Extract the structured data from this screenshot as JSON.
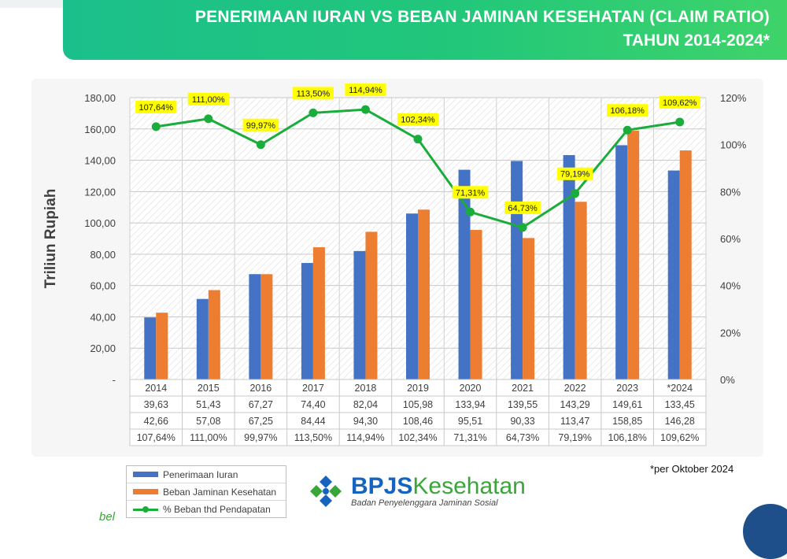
{
  "header": {
    "title_line1": "PENERIMAAN IURAN VS BEBAN JAMINAN KESEHATAN (CLAIM RATIO)",
    "title_line2": "TAHUN 2014-2024*"
  },
  "colors": {
    "bar_iuran": "#4472c4",
    "bar_beban": "#ed7d31",
    "line": "#1aad3b",
    "label_bg": "#ffff00",
    "banner": "#22c77a"
  },
  "chart_data": {
    "type": "bar",
    "categories": [
      "2014",
      "2015",
      "2016",
      "2017",
      "2018",
      "2019",
      "2020",
      "2021",
      "2022",
      "2023",
      "*2024"
    ],
    "series": [
      {
        "name": "Penerimaan Iuran",
        "type": "bar",
        "axis": "left",
        "values": [
          39.63,
          51.43,
          67.27,
          74.4,
          82.04,
          105.98,
          133.94,
          139.55,
          143.29,
          149.61,
          133.45
        ],
        "labels": [
          "39,63",
          "51,43",
          "67,27",
          "74,40",
          "82,04",
          "105,98",
          "133,94",
          "139,55",
          "143,29",
          "149,61",
          "133,45"
        ]
      },
      {
        "name": "Beban Jaminan Kesehatan",
        "type": "bar",
        "axis": "left",
        "values": [
          42.66,
          57.08,
          67.25,
          84.44,
          94.3,
          108.46,
          95.51,
          90.33,
          113.47,
          158.85,
          146.28
        ],
        "labels": [
          "42,66",
          "57,08",
          "67,25",
          "84,44",
          "94,30",
          "108,46",
          "95,51",
          "90,33",
          "113,47",
          "158,85",
          "146,28"
        ]
      },
      {
        "name": "% Beban thd Pendapatan",
        "type": "line",
        "axis": "right",
        "values": [
          107.64,
          111.0,
          99.97,
          113.5,
          114.94,
          102.34,
          71.31,
          64.73,
          79.19,
          106.18,
          109.62
        ],
        "labels": [
          "107,64%",
          "111,00%",
          "99,97%",
          "113,50%",
          "114,94%",
          "102,34%",
          "71,31%",
          "64,73%",
          "79,19%",
          "106,18%",
          "109,62%"
        ]
      }
    ],
    "ylabel": "Triliun Rupiah",
    "ylim": [
      0,
      180
    ],
    "y_ticks": [
      "-",
      "20,00",
      "40,00",
      "60,00",
      "80,00",
      "100,00",
      "120,00",
      "140,00",
      "160,00",
      "180,00"
    ],
    "y2lim": [
      0,
      120
    ],
    "y2_ticks": [
      "0%",
      "20%",
      "40%",
      "60%",
      "80%",
      "100%",
      "120%"
    ],
    "grid": true,
    "data_table": true,
    "legend_position": "bottom-left"
  },
  "footnote": "*per Oktober 2024",
  "logo": {
    "name_part1": "BPJS",
    "name_part2": "Kesehatan",
    "subtitle": "Badan Penyelenggara Jaminan Sosial"
  },
  "corner_text": "bel"
}
